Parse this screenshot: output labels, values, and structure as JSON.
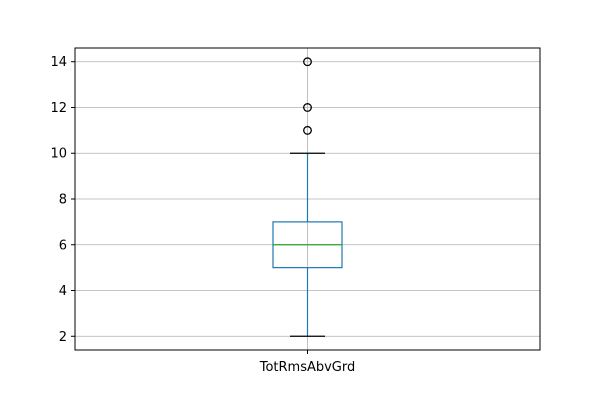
{
  "chart_data": {
    "type": "box",
    "title": "",
    "xlabel": "",
    "ylabel": "",
    "categories": [
      "TotRmsAbvGrd"
    ],
    "ylim": [
      1.4,
      14.6
    ],
    "yticks": [
      2,
      4,
      6,
      8,
      10,
      12,
      14
    ],
    "ytick_labels": [
      "2",
      "4",
      "6",
      "8",
      "10",
      "12",
      "14"
    ],
    "grid": true,
    "boxes": [
      {
        "category": "TotRmsAbvGrd",
        "whisker_low": 2,
        "q1": 5,
        "median": 6,
        "q3": 7,
        "whisker_high": 10,
        "outliers": [
          11,
          12,
          14
        ]
      }
    ]
  },
  "colors": {
    "box": "#1f77b4",
    "median": "#2ca02c",
    "grid": "#b0b0b0",
    "axes": "#000000",
    "outlier": "#000000"
  }
}
